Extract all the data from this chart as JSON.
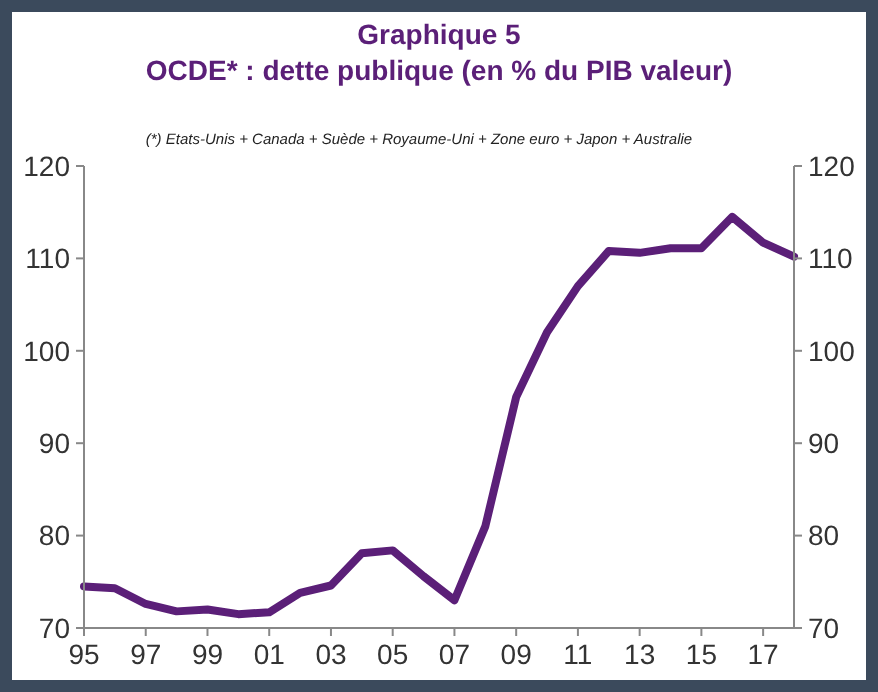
{
  "chart_data": {
    "type": "line",
    "title": "Graphique 5",
    "subtitle": "OCDE* : dette publique (en % du PIB valeur)",
    "annotations": [
      "(*) Etats-Unis + Canada + Suède + Royaume-Uni + Zone euro + Japon + Australie"
    ],
    "x": [
      1995,
      1996,
      1997,
      1998,
      1999,
      2000,
      2001,
      2002,
      2003,
      2004,
      2005,
      2006,
      2007,
      2008,
      2009,
      2010,
      2011,
      2012,
      2013,
      2014,
      2015,
      2016,
      2017,
      2018
    ],
    "series": [
      {
        "color": "#5b1f78",
        "values": [
          74.5,
          74.3,
          72.6,
          71.8,
          72.0,
          71.5,
          71.7,
          73.8,
          74.6,
          78.1,
          78.4,
          75.6,
          73.0,
          81,
          95,
          102,
          107,
          110.8,
          110.6,
          111.1,
          111.1,
          114.5,
          111.7,
          110.2
        ]
      }
    ],
    "xlim": [
      1995,
      2018
    ],
    "xticks": [
      {
        "value": 1995,
        "label": "95"
      },
      {
        "value": 1997,
        "label": "97"
      },
      {
        "value": 1999,
        "label": "99"
      },
      {
        "value": 2001,
        "label": "01"
      },
      {
        "value": 2003,
        "label": "03"
      },
      {
        "value": 2005,
        "label": "05"
      },
      {
        "value": 2007,
        "label": "07"
      },
      {
        "value": 2009,
        "label": "09"
      },
      {
        "value": 2011,
        "label": "11"
      },
      {
        "value": 2013,
        "label": "13"
      },
      {
        "value": 2015,
        "label": "15"
      },
      {
        "value": 2017,
        "label": "17"
      }
    ],
    "ylim": [
      70,
      120
    ],
    "yticks": [
      70,
      80,
      90,
      100,
      110,
      120
    ],
    "y2lim": [
      70,
      120
    ],
    "y2ticks": [
      70,
      80,
      90,
      100,
      110,
      120
    ],
    "grid": false,
    "marker": "none",
    "line_style": "solid"
  }
}
